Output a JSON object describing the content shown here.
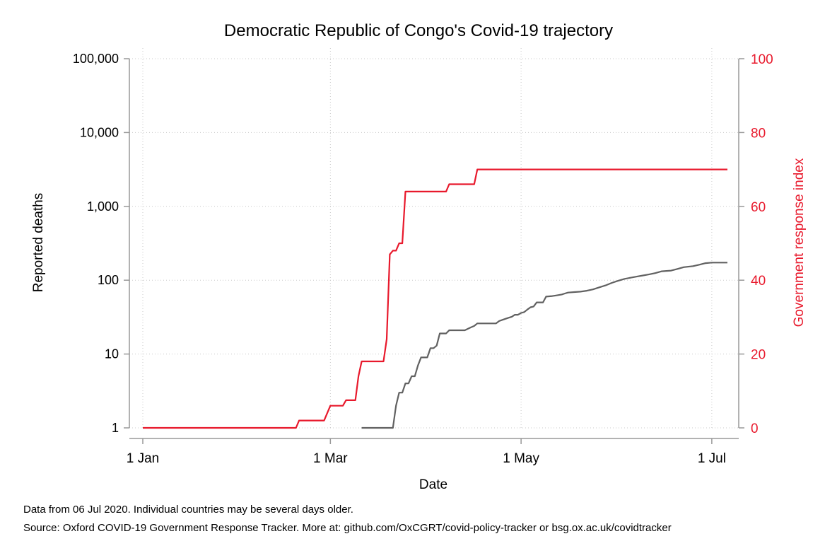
{
  "chart_data": {
    "type": "line",
    "title": "Democratic Republic of Congo's Covid-19 trajectory",
    "xlabel": "Date",
    "ylabel_left": "Reported deaths",
    "ylabel_right": "Government response index",
    "x_axis": {
      "range": [
        "2020-01-01",
        "2020-07-06"
      ],
      "ticks": [
        {
          "date": "2020-01-01",
          "label": "1 Jan"
        },
        {
          "date": "2020-03-01",
          "label": "1 Mar"
        },
        {
          "date": "2020-05-01",
          "label": "1 May"
        },
        {
          "date": "2020-07-01",
          "label": "1 Jul"
        }
      ]
    },
    "y_left": {
      "scale": "log",
      "range": [
        1,
        100000
      ],
      "ticks": [
        {
          "value": 1,
          "label": "1"
        },
        {
          "value": 10,
          "label": "10"
        },
        {
          "value": 100,
          "label": "100"
        },
        {
          "value": 1000,
          "label": "1,000"
        },
        {
          "value": 10000,
          "label": "10,000"
        },
        {
          "value": 100000,
          "label": "100,000"
        }
      ]
    },
    "y_right": {
      "scale": "linear",
      "range": [
        0,
        100
      ],
      "ticks": [
        {
          "value": 0,
          "label": "0"
        },
        {
          "value": 20,
          "label": "20"
        },
        {
          "value": 40,
          "label": "40"
        },
        {
          "value": 60,
          "label": "60"
        },
        {
          "value": 80,
          "label": "80"
        },
        {
          "value": 100,
          "label": "100"
        }
      ]
    },
    "grid": true,
    "series": [
      {
        "axis": "right",
        "color": "#e8192c",
        "points": [
          [
            "2020-01-01",
            0
          ],
          [
            "2020-02-19",
            0
          ],
          [
            "2020-02-20",
            2
          ],
          [
            "2020-02-28",
            2
          ],
          [
            "2020-03-01",
            6
          ],
          [
            "2020-03-05",
            6
          ],
          [
            "2020-03-06",
            7.5
          ],
          [
            "2020-03-09",
            7.5
          ],
          [
            "2020-03-10",
            14
          ],
          [
            "2020-03-11",
            18
          ],
          [
            "2020-03-18",
            18
          ],
          [
            "2020-03-19",
            24
          ],
          [
            "2020-03-20",
            47
          ],
          [
            "2020-03-21",
            48
          ],
          [
            "2020-03-22",
            48
          ],
          [
            "2020-03-23",
            50
          ],
          [
            "2020-03-24",
            50
          ],
          [
            "2020-03-25",
            64
          ],
          [
            "2020-04-07",
            64
          ],
          [
            "2020-04-08",
            66
          ],
          [
            "2020-04-16",
            66
          ],
          [
            "2020-04-17",
            70
          ],
          [
            "2020-07-06",
            70
          ]
        ]
      },
      {
        "axis": "left",
        "color": "#616161",
        "points": [
          [
            "2020-03-11",
            1
          ],
          [
            "2020-03-21",
            1
          ],
          [
            "2020-03-22",
            2
          ],
          [
            "2020-03-23",
            3
          ],
          [
            "2020-03-24",
            3
          ],
          [
            "2020-03-25",
            4
          ],
          [
            "2020-03-26",
            4
          ],
          [
            "2020-03-27",
            5
          ],
          [
            "2020-03-28",
            5
          ],
          [
            "2020-03-29",
            7
          ],
          [
            "2020-03-30",
            9
          ],
          [
            "2020-03-31",
            9
          ],
          [
            "2020-04-01",
            9
          ],
          [
            "2020-04-02",
            12
          ],
          [
            "2020-04-03",
            12
          ],
          [
            "2020-04-04",
            13
          ],
          [
            "2020-04-05",
            19
          ],
          [
            "2020-04-06",
            19
          ],
          [
            "2020-04-07",
            19
          ],
          [
            "2020-04-08",
            21
          ],
          [
            "2020-04-13",
            21
          ],
          [
            "2020-04-14",
            22
          ],
          [
            "2020-04-15",
            23
          ],
          [
            "2020-04-16",
            24
          ],
          [
            "2020-04-17",
            26
          ],
          [
            "2020-04-23",
            26
          ],
          [
            "2020-04-24",
            28
          ],
          [
            "2020-04-25",
            29
          ],
          [
            "2020-04-26",
            30
          ],
          [
            "2020-04-27",
            31
          ],
          [
            "2020-04-28",
            32
          ],
          [
            "2020-04-29",
            34
          ],
          [
            "2020-04-30",
            34
          ],
          [
            "2020-05-01",
            36
          ],
          [
            "2020-05-02",
            37
          ],
          [
            "2020-05-03",
            40
          ],
          [
            "2020-05-04",
            43
          ],
          [
            "2020-05-05",
            44
          ],
          [
            "2020-05-06",
            50
          ],
          [
            "2020-05-07",
            50
          ],
          [
            "2020-05-08",
            50
          ],
          [
            "2020-05-09",
            60
          ],
          [
            "2020-05-11",
            61
          ],
          [
            "2020-05-12",
            62
          ],
          [
            "2020-05-14",
            64
          ],
          [
            "2020-05-15",
            66
          ],
          [
            "2020-05-16",
            68
          ],
          [
            "2020-05-18",
            69
          ],
          [
            "2020-05-20",
            70
          ],
          [
            "2020-05-22",
            72
          ],
          [
            "2020-05-24",
            75
          ],
          [
            "2020-05-26",
            80
          ],
          [
            "2020-05-28",
            85
          ],
          [
            "2020-05-30",
            92
          ],
          [
            "2020-06-01",
            98
          ],
          [
            "2020-06-03",
            104
          ],
          [
            "2020-06-05",
            108
          ],
          [
            "2020-06-07",
            112
          ],
          [
            "2020-06-09",
            116
          ],
          [
            "2020-06-11",
            120
          ],
          [
            "2020-06-13",
            125
          ],
          [
            "2020-06-15",
            132
          ],
          [
            "2020-06-18",
            135
          ],
          [
            "2020-06-20",
            142
          ],
          [
            "2020-06-22",
            150
          ],
          [
            "2020-06-25",
            155
          ],
          [
            "2020-06-27",
            162
          ],
          [
            "2020-06-29",
            170
          ],
          [
            "2020-07-01",
            173
          ],
          [
            "2020-07-06",
            173
          ]
        ]
      }
    ]
  },
  "notes": [
    "Data from 06 Jul 2020. Individual countries may be several days older.",
    "Source: Oxford COVID-19 Government Response Tracker. More at: github.com/OxCGRT/covid-policy-tracker or bsg.ox.ac.uk/covidtracker"
  ]
}
